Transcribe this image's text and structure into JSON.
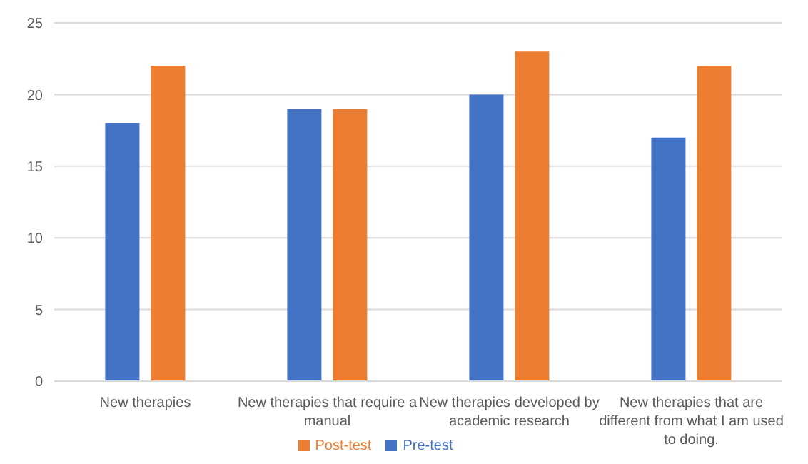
{
  "chart_data": {
    "type": "bar",
    "categories": [
      "New therapies",
      "New therapies that require a manual",
      "New therapies developed by academic research",
      "New therapies that are different from what I am used to doing."
    ],
    "series": [
      {
        "name": "Pre-test",
        "color": "#4472c4",
        "values": [
          18,
          19,
          20,
          17
        ]
      },
      {
        "name": "Post-test",
        "color": "#ed7d31",
        "values": [
          22,
          19,
          23,
          22
        ]
      }
    ],
    "ylim": [
      0,
      25
    ],
    "yticks": [
      0,
      5,
      10,
      15,
      20,
      25
    ],
    "grid": "y",
    "legend": "bottom"
  }
}
